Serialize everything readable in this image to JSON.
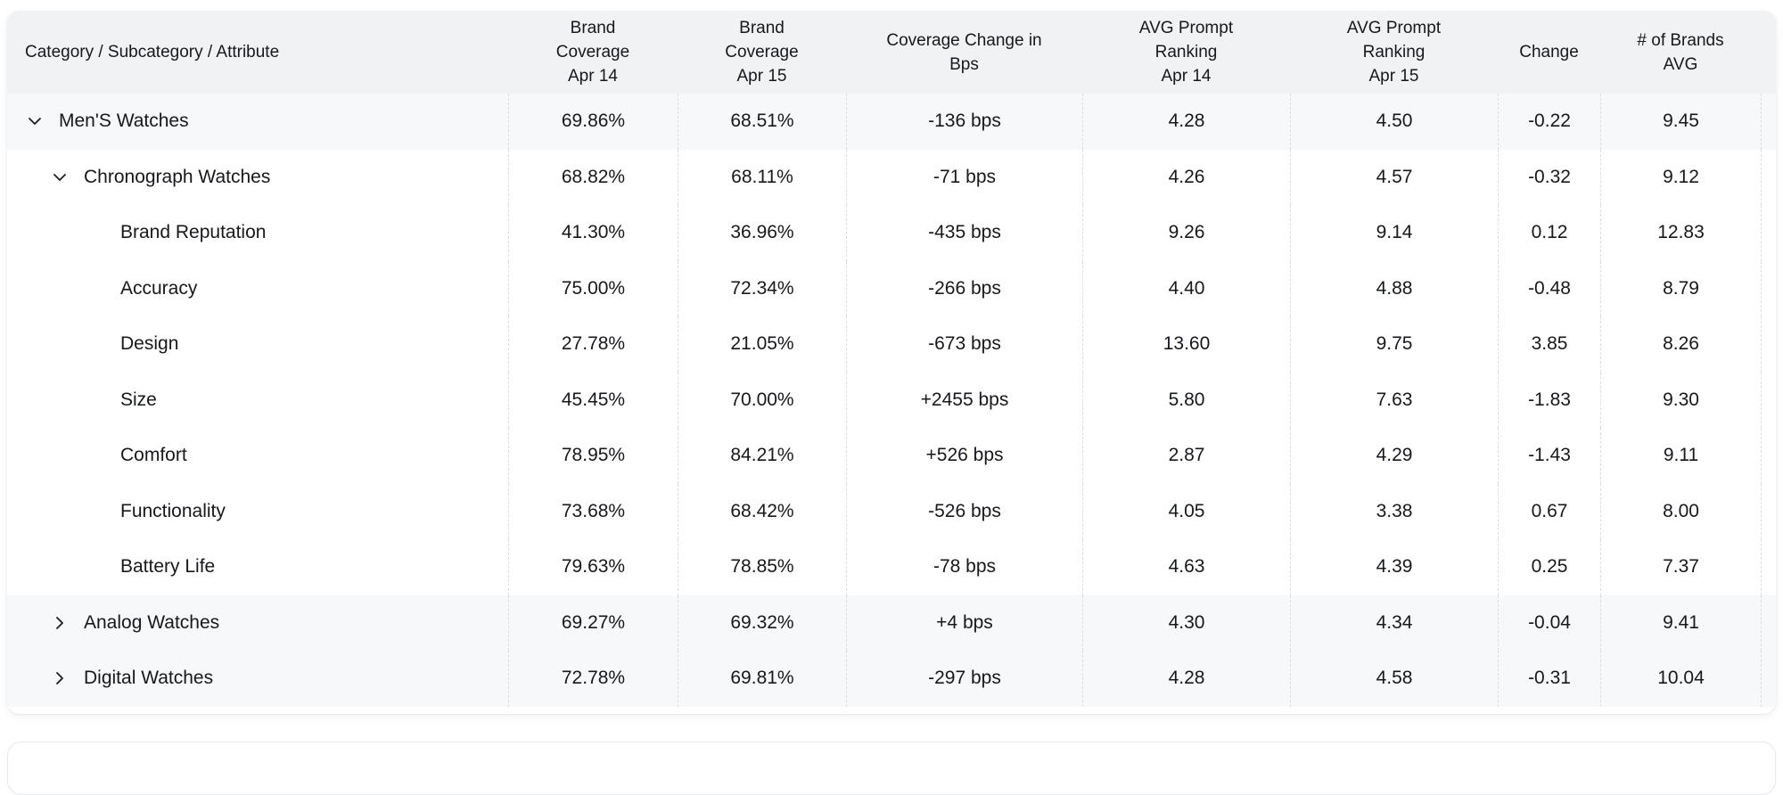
{
  "colors": {
    "header_bg": "#f1f2f4",
    "row_highlight_bg": "#f7f8f9",
    "row_bg": "#ffffff",
    "divider": "#dcdde2",
    "text": "#17181c"
  },
  "table": {
    "columns": [
      {
        "id": "category",
        "label": "Category / Subcategory / Attribute",
        "align": "left"
      },
      {
        "id": "brand_coverage_apr14",
        "label": "Brand\nCoverage\nApr 14",
        "align": "center"
      },
      {
        "id": "brand_coverage_apr15",
        "label": "Brand\nCoverage\nApr 15",
        "align": "center"
      },
      {
        "id": "coverage_change_bps",
        "label": "Coverage Change in\nBps",
        "align": "center"
      },
      {
        "id": "avg_prompt_ranking_apr14",
        "label": "AVG Prompt\nRanking\nApr 14",
        "align": "center"
      },
      {
        "id": "avg_prompt_ranking_apr15",
        "label": "AVG Prompt\nRanking\nApr 15",
        "align": "center"
      },
      {
        "id": "change",
        "label": "Change",
        "align": "center"
      },
      {
        "id": "num_brands_avg",
        "label": "# of Brands\nAVG",
        "align": "center"
      }
    ],
    "rows": [
      {
        "label": "Men'S Watches",
        "level": 1,
        "expand_state": "expanded",
        "highlighted": true,
        "values": [
          "69.86%",
          "68.51%",
          "-136 bps",
          "4.28",
          "4.50",
          "-0.22",
          "9.45"
        ]
      },
      {
        "label": "Chronograph Watches",
        "level": 2,
        "expand_state": "expanded",
        "highlighted": false,
        "values": [
          "68.82%",
          "68.11%",
          "-71 bps",
          "4.26",
          "4.57",
          "-0.32",
          "9.12"
        ]
      },
      {
        "label": "Brand Reputation",
        "level": 3,
        "expand_state": "none",
        "highlighted": false,
        "values": [
          "41.30%",
          "36.96%",
          "-435 bps",
          "9.26",
          "9.14",
          "0.12",
          "12.83"
        ]
      },
      {
        "label": "Accuracy",
        "level": 3,
        "expand_state": "none",
        "highlighted": false,
        "values": [
          "75.00%",
          "72.34%",
          "-266 bps",
          "4.40",
          "4.88",
          "-0.48",
          "8.79"
        ]
      },
      {
        "label": "Design",
        "level": 3,
        "expand_state": "none",
        "highlighted": false,
        "values": [
          "27.78%",
          "21.05%",
          "-673 bps",
          "13.60",
          "9.75",
          "3.85",
          "8.26"
        ]
      },
      {
        "label": "Size",
        "level": 3,
        "expand_state": "none",
        "highlighted": false,
        "values": [
          "45.45%",
          "70.00%",
          "+2455 bps",
          "5.80",
          "7.63",
          "-1.83",
          "9.30"
        ]
      },
      {
        "label": "Comfort",
        "level": 3,
        "expand_state": "none",
        "highlighted": false,
        "values": [
          "78.95%",
          "84.21%",
          "+526 bps",
          "2.87",
          "4.29",
          "-1.43",
          "9.11"
        ]
      },
      {
        "label": "Functionality",
        "level": 3,
        "expand_state": "none",
        "highlighted": false,
        "values": [
          "73.68%",
          "68.42%",
          "-526 bps",
          "4.05",
          "3.38",
          "0.67",
          "8.00"
        ]
      },
      {
        "label": "Battery Life",
        "level": 3,
        "expand_state": "none",
        "highlighted": false,
        "values": [
          "79.63%",
          "78.85%",
          "-78 bps",
          "4.63",
          "4.39",
          "0.25",
          "7.37"
        ]
      },
      {
        "label": "Analog Watches",
        "level": 2,
        "expand_state": "collapsed",
        "highlighted": true,
        "values": [
          "69.27%",
          "69.32%",
          "+4 bps",
          "4.30",
          "4.34",
          "-0.04",
          "9.41"
        ]
      },
      {
        "label": "Digital Watches",
        "level": 2,
        "expand_state": "collapsed",
        "highlighted": true,
        "values": [
          "72.78%",
          "69.81%",
          "-297 bps",
          "4.28",
          "4.58",
          "-0.31",
          "10.04"
        ]
      }
    ]
  }
}
